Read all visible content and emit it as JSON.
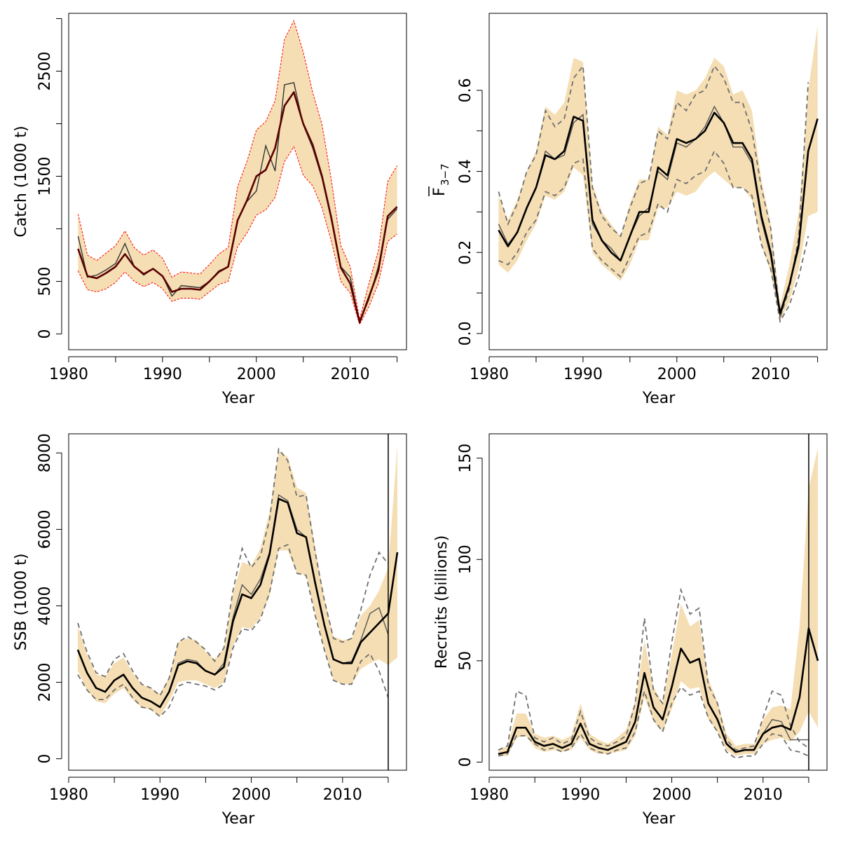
{
  "colors": {
    "band": "#F5DEB3",
    "estimate": "#000000",
    "catch_estimate": "#5a0000",
    "observed": "#555555",
    "retro": "#707070",
    "catch_bounds": "#ff0000"
  },
  "chart_data": [
    {
      "id": "catch",
      "type": "line",
      "xlabel": "Year",
      "ylabel": "Catch (1000 t)",
      "xlim": [
        1980,
        2016
      ],
      "ylim": [
        -150,
        3050
      ],
      "xticks": [
        1980,
        1990,
        2000,
        2010
      ],
      "yticks": [
        0,
        500,
        1500,
        2500
      ],
      "x": [
        1981,
        1982,
        1983,
        1984,
        1985,
        1986,
        1987,
        1988,
        1989,
        1990,
        1991,
        1992,
        1993,
        1994,
        1995,
        1996,
        1997,
        1998,
        1999,
        2000,
        2001,
        2002,
        2003,
        2004,
        2005,
        2006,
        2007,
        2008,
        2009,
        2010,
        2011,
        2012,
        2013,
        2014,
        2015
      ],
      "estimate": [
        810,
        550,
        530,
        580,
        640,
        760,
        640,
        570,
        620,
        550,
        400,
        430,
        430,
        420,
        500,
        590,
        640,
        1080,
        1270,
        1500,
        1560,
        1770,
        2170,
        2300,
        2000,
        1800,
        1500,
        1100,
        630,
        480,
        110,
        350,
        600,
        1120,
        1210
      ],
      "lower": [
        600,
        420,
        400,
        430,
        490,
        590,
        500,
        450,
        490,
        430,
        310,
        340,
        340,
        330,
        400,
        470,
        500,
        830,
        960,
        1130,
        1180,
        1300,
        1640,
        1780,
        1510,
        1410,
        1200,
        880,
        500,
        390,
        90,
        260,
        480,
        880,
        950
      ],
      "upper": [
        1140,
        750,
        700,
        770,
        840,
        980,
        820,
        750,
        800,
        720,
        540,
        590,
        580,
        570,
        660,
        760,
        820,
        1400,
        1640,
        1940,
        2020,
        2220,
        2800,
        2980,
        2680,
        2300,
        1990,
        1460,
        840,
        640,
        140,
        480,
        790,
        1450,
        1600
      ],
      "observed": [
        930,
        540,
        560,
        610,
        670,
        860,
        640,
        560,
        620,
        550,
        360,
        460,
        450,
        440,
        500,
        600,
        640,
        1080,
        1260,
        1360,
        1790,
        1550,
        2370,
        2390,
        1990,
        1770,
        1480,
        1080,
        640,
        540,
        110,
        330,
        640,
        1090,
        1190
      ]
    },
    {
      "id": "fbar",
      "type": "line",
      "xlabel": "Year",
      "ylabel_main": "F",
      "ylabel_sub": "3−7",
      "xlim": [
        1980,
        2016
      ],
      "ylim": [
        -0.04,
        0.79
      ],
      "xticks": [
        1980,
        1990,
        2000,
        2010
      ],
      "yticks": [
        0.0,
        0.2,
        0.4,
        0.6
      ],
      "ytick_labels": [
        "0.0",
        "0.2",
        "0.4",
        "0.6"
      ],
      "x": [
        1981,
        1982,
        1983,
        1984,
        1985,
        1986,
        1987,
        1988,
        1989,
        1990,
        1991,
        1992,
        1993,
        1994,
        1995,
        1996,
        1997,
        1998,
        1999,
        2000,
        2001,
        2002,
        2003,
        2004,
        2005,
        2006,
        2007,
        2008,
        2009,
        2010,
        2011,
        2012,
        2013,
        2014,
        2015
      ],
      "estimate": [
        0.255,
        0.215,
        0.25,
        0.31,
        0.36,
        0.44,
        0.43,
        0.45,
        0.535,
        0.525,
        0.28,
        0.23,
        0.2,
        0.18,
        0.24,
        0.3,
        0.3,
        0.41,
        0.39,
        0.48,
        0.47,
        0.48,
        0.5,
        0.545,
        0.52,
        0.47,
        0.47,
        0.43,
        0.29,
        0.2,
        0.05,
        0.12,
        0.22,
        0.45,
        0.53
      ],
      "lower": [
        0.17,
        0.15,
        0.18,
        0.23,
        0.27,
        0.34,
        0.33,
        0.35,
        0.41,
        0.39,
        0.2,
        0.17,
        0.15,
        0.13,
        0.17,
        0.23,
        0.23,
        0.31,
        0.31,
        0.35,
        0.34,
        0.35,
        0.38,
        0.4,
        0.38,
        0.36,
        0.36,
        0.33,
        0.22,
        0.15,
        0.03,
        0.08,
        0.16,
        0.29,
        0.3
      ],
      "upper": [
        0.34,
        0.28,
        0.33,
        0.4,
        0.45,
        0.56,
        0.54,
        0.57,
        0.68,
        0.67,
        0.37,
        0.3,
        0.27,
        0.24,
        0.32,
        0.38,
        0.38,
        0.51,
        0.49,
        0.6,
        0.59,
        0.6,
        0.63,
        0.68,
        0.66,
        0.59,
        0.6,
        0.55,
        0.38,
        0.27,
        0.07,
        0.17,
        0.3,
        0.6,
        0.76
      ],
      "observed": [
        0.27,
        0.22,
        0.25,
        0.31,
        0.36,
        0.45,
        0.43,
        0.44,
        0.52,
        0.54,
        0.27,
        0.23,
        0.21,
        0.18,
        0.24,
        0.29,
        0.31,
        0.4,
        0.38,
        0.47,
        0.46,
        0.48,
        0.51,
        0.56,
        0.52,
        0.46,
        0.46,
        0.42,
        0.28,
        0.19,
        0.04,
        0.12,
        0.21,
        0.44
      ],
      "retro_upper": [
        0.35,
        0.27,
        0.32,
        0.4,
        0.44,
        0.55,
        0.51,
        0.53,
        0.63,
        0.66,
        0.36,
        0.29,
        0.26,
        0.24,
        0.31,
        0.37,
        0.38,
        0.5,
        0.48,
        0.57,
        0.55,
        0.59,
        0.6,
        0.66,
        0.63,
        0.57,
        0.57,
        0.5,
        0.36,
        0.26,
        0.04,
        0.11,
        0.24,
        0.62
      ],
      "retro_lower": [
        0.18,
        0.17,
        0.2,
        0.25,
        0.28,
        0.35,
        0.34,
        0.36,
        0.42,
        0.43,
        0.21,
        0.18,
        0.16,
        0.14,
        0.19,
        0.24,
        0.25,
        0.32,
        0.3,
        0.38,
        0.37,
        0.39,
        0.4,
        0.45,
        0.42,
        0.36,
        0.36,
        0.34,
        0.22,
        0.16,
        0.03,
        0.07,
        0.14,
        0.24
      ]
    },
    {
      "id": "ssb",
      "type": "line",
      "xlabel": "Year",
      "ylabel": "SSB (1000 t)",
      "xlim": [
        1980,
        2017
      ],
      "ylim": [
        -300,
        8500
      ],
      "xticks": [
        1980,
        1990,
        2000,
        2010
      ],
      "yticks": [
        0,
        2000,
        4000,
        6000,
        8000
      ],
      "vline_x": 2015,
      "x": [
        1981,
        1982,
        1983,
        1984,
        1985,
        1986,
        1987,
        1988,
        1989,
        1990,
        1991,
        1992,
        1993,
        1994,
        1995,
        1996,
        1997,
        1998,
        1999,
        2000,
        2001,
        2002,
        2003,
        2004,
        2005,
        2006,
        2007,
        2008,
        2009,
        2010,
        2011,
        2012,
        2013,
        2014,
        2015,
        2016
      ],
      "estimate": [
        2850,
        2250,
        1850,
        1750,
        2050,
        2200,
        1850,
        1600,
        1500,
        1350,
        1750,
        2450,
        2550,
        2500,
        2300,
        2200,
        2400,
        3600,
        4300,
        4200,
        4550,
        5350,
        6800,
        6700,
        5900,
        5800,
        4600,
        3500,
        2600,
        2500,
        2500,
        3050,
        3300,
        3550,
        3800,
        5400
      ],
      "lower": [
        2300,
        1800,
        1500,
        1450,
        1700,
        1850,
        1550,
        1350,
        1280,
        1100,
        1500,
        2000,
        2050,
        2050,
        1950,
        1850,
        2000,
        2950,
        3450,
        3400,
        3700,
        4250,
        5450,
        5450,
        4850,
        4800,
        3800,
        2850,
        2050,
        1950,
        1950,
        2350,
        2500,
        2600,
        2450,
        2650
      ],
      "upper": [
        3450,
        2750,
        2200,
        2150,
        2500,
        2650,
        2250,
        1950,
        1850,
        1700,
        2150,
        3050,
        3150,
        3100,
        2800,
        2600,
        2900,
        4350,
        5150,
        5050,
        5500,
        6450,
        8050,
        7900,
        7100,
        6950,
        5550,
        4200,
        3200,
        3100,
        3150,
        3750,
        4000,
        4400,
        5000,
        8200
      ],
      "observed": [
        2850,
        2250,
        1850,
        1750,
        2050,
        2200,
        1850,
        1600,
        1500,
        1350,
        1750,
        2500,
        2600,
        2550,
        2300,
        2200,
        2500,
        3700,
        4550,
        4300,
        4700,
        5400,
        6900,
        6750,
        6000,
        5800,
        4650,
        3500,
        2600,
        2500,
        2550,
        3100,
        3800,
        3950,
        3250
      ],
      "retro_upper": [
        3550,
        2800,
        2250,
        2150,
        2600,
        2750,
        2300,
        1950,
        1850,
        1650,
        2100,
        3050,
        3200,
        3050,
        2850,
        2550,
        2900,
        4400,
        5500,
        5000,
        5300,
        6250,
        8100,
        7800,
        6850,
        6900,
        5400,
        4150,
        3150,
        3050,
        3150,
        3900,
        4800,
        5400,
        5100
      ],
      "retro_lower": [
        2200,
        1800,
        1550,
        1550,
        1800,
        1950,
        1600,
        1350,
        1300,
        1100,
        1350,
        1900,
        2000,
        1950,
        1900,
        1800,
        1950,
        2900,
        3400,
        3350,
        3650,
        4350,
        5500,
        5600,
        4850,
        4800,
        3750,
        2850,
        2050,
        1950,
        1950,
        2550,
        2750,
        2300,
        1600
      ]
    },
    {
      "id": "recruits",
      "type": "line",
      "xlabel": "Year",
      "ylabel": "Recruits (billions)",
      "xlim": [
        1980,
        2017
      ],
      "ylim": [
        -4,
        162
      ],
      "xticks": [
        1980,
        1990,
        2000,
        2010
      ],
      "yticks": [
        0,
        50,
        100,
        150
      ],
      "vline_x": 2015,
      "x": [
        1981,
        1982,
        1983,
        1984,
        1985,
        1986,
        1987,
        1988,
        1989,
        1990,
        1991,
        1992,
        1993,
        1994,
        1995,
        1996,
        1997,
        1998,
        1999,
        2000,
        2001,
        2002,
        2003,
        2004,
        2005,
        2006,
        2007,
        2008,
        2009,
        2010,
        2011,
        2012,
        2013,
        2014,
        2015,
        2016
      ],
      "estimate": [
        4,
        5,
        17,
        17,
        10,
        8,
        9,
        7,
        9,
        19,
        9,
        7,
        6,
        8,
        10,
        20,
        44,
        27,
        21,
        37,
        56,
        49,
        51,
        29,
        21,
        9,
        5,
        6,
        6,
        14,
        17,
        18,
        16,
        32,
        66,
        50
      ],
      "lower": [
        3,
        3,
        12,
        13,
        7,
        5,
        6,
        5,
        6,
        12,
        6,
        4,
        4,
        5,
        6,
        13,
        32,
        20,
        15,
        26,
        40,
        36,
        37,
        21,
        15,
        6,
        3,
        4,
        4,
        9,
        11,
        12,
        10,
        15,
        25,
        17
      ],
      "upper": [
        6,
        8,
        24,
        24,
        14,
        12,
        13,
        11,
        13,
        29,
        14,
        11,
        9,
        12,
        16,
        30,
        60,
        37,
        29,
        53,
        78,
        67,
        70,
        41,
        30,
        14,
        8,
        9,
        9,
        21,
        27,
        28,
        26,
        67,
        135,
        155
      ],
      "observed": [
        4,
        5,
        17,
        17,
        10,
        8,
        9,
        7,
        9,
        19,
        9,
        7,
        6,
        8,
        10,
        20,
        44,
        27,
        21,
        37,
        56,
        49,
        51,
        29,
        21,
        9,
        5,
        6,
        6,
        14,
        21,
        20,
        11,
        11,
        11
      ],
      "retro_upper": [
        6,
        8,
        35,
        33,
        12,
        10,
        12,
        9,
        11,
        25,
        12,
        9,
        8,
        10,
        13,
        29,
        71,
        35,
        29,
        59,
        85,
        73,
        76,
        38,
        29,
        11,
        6,
        7,
        8,
        22,
        35,
        33,
        18,
        10,
        7
      ],
      "retro_lower": [
        3,
        4,
        13,
        13,
        9,
        6,
        7,
        5,
        7,
        14,
        7,
        5,
        4,
        6,
        7,
        15,
        35,
        21,
        15,
        29,
        37,
        33,
        35,
        22,
        15,
        5,
        2,
        3,
        3,
        9,
        14,
        13,
        6,
        5,
        3
      ]
    }
  ]
}
